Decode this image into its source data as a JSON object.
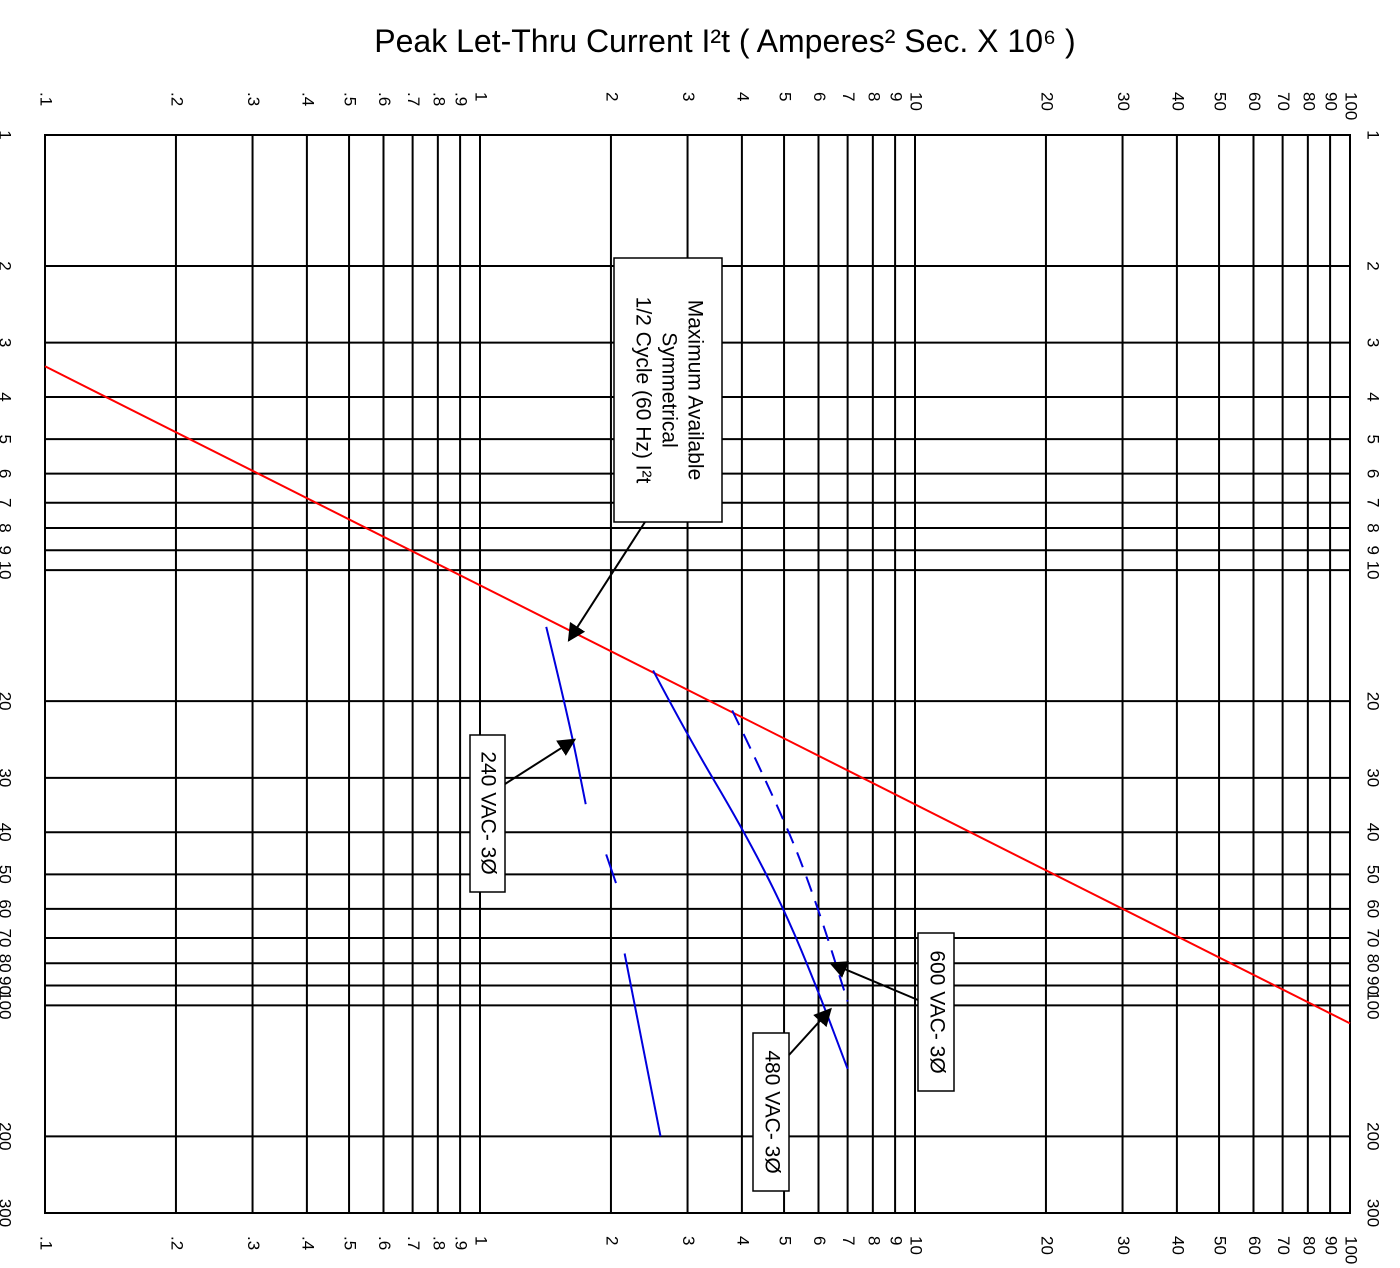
{
  "chart_data": {
    "type": "line",
    "title": "Peak Let-Thru Current I²t ( Amperes²  Sec. X 10⁶ )",
    "x_scale": "log",
    "y_scale": "log",
    "xlim": [
      0.1,
      100
    ],
    "ylim": [
      1,
      300
    ],
    "grid": true,
    "x_ticks": [
      {
        "v": 0.1,
        "label": ".1"
      },
      {
        "v": 0.2,
        "label": ".2"
      },
      {
        "v": 0.3,
        "label": ".3"
      },
      {
        "v": 0.4,
        "label": ".4"
      },
      {
        "v": 0.5,
        "label": ".5"
      },
      {
        "v": 0.6,
        "label": ".6"
      },
      {
        "v": 0.7,
        "label": ".7"
      },
      {
        "v": 0.8,
        "label": ".8"
      },
      {
        "v": 0.9,
        "label": ".9"
      },
      {
        "v": 1,
        "label": "1"
      },
      {
        "v": 2,
        "label": "2"
      },
      {
        "v": 3,
        "label": "3"
      },
      {
        "v": 4,
        "label": "4"
      },
      {
        "v": 5,
        "label": "5"
      },
      {
        "v": 6,
        "label": "6"
      },
      {
        "v": 7,
        "label": "7"
      },
      {
        "v": 8,
        "label": "8"
      },
      {
        "v": 9,
        "label": "9"
      },
      {
        "v": 10,
        "label": "10"
      },
      {
        "v": 20,
        "label": "20"
      },
      {
        "v": 30,
        "label": "30"
      },
      {
        "v": 40,
        "label": "40"
      },
      {
        "v": 50,
        "label": "50"
      },
      {
        "v": 60,
        "label": "60"
      },
      {
        "v": 70,
        "label": "70"
      },
      {
        "v": 80,
        "label": "80"
      },
      {
        "v": 90,
        "label": "90"
      },
      {
        "v": 100,
        "label": "100"
      }
    ],
    "y_ticks": [
      {
        "v": 1,
        "label": "1"
      },
      {
        "v": 2,
        "label": "2"
      },
      {
        "v": 3,
        "label": "3"
      },
      {
        "v": 4,
        "label": "4"
      },
      {
        "v": 5,
        "label": "5"
      },
      {
        "v": 6,
        "label": "6"
      },
      {
        "v": 7,
        "label": "7"
      },
      {
        "v": 8,
        "label": "8"
      },
      {
        "v": 9,
        "label": "9"
      },
      {
        "v": 10,
        "label": "10"
      },
      {
        "v": 20,
        "label": "20"
      },
      {
        "v": 30,
        "label": "30"
      },
      {
        "v": 40,
        "label": "40"
      },
      {
        "v": 50,
        "label": "50"
      },
      {
        "v": 60,
        "label": "60"
      },
      {
        "v": 70,
        "label": "70"
      },
      {
        "v": 80,
        "label": "80"
      },
      {
        "v": 90,
        "label": "90"
      },
      {
        "v": 100,
        "label": "100"
      },
      {
        "v": 200,
        "label": "200"
      },
      {
        "v": 300,
        "label": "300"
      }
    ],
    "series": [
      {
        "id": "max-available",
        "color": "#ff0000",
        "style": "solid",
        "points": [
          [
            0.1,
            3.4
          ],
          [
            100,
            110
          ]
        ]
      },
      {
        "id": "240vac",
        "color": "#0000dd",
        "style": "solid",
        "points": [
          [
            1.42,
            13.5
          ],
          [
            1.6,
            22
          ],
          [
            1.75,
            34.5
          ]
        ]
      },
      {
        "id": "240vac-b",
        "color": "#0000dd",
        "style": "dashes",
        "points": [
          [
            1.95,
            45
          ],
          [
            2.05,
            52
          ],
          [
            2.15,
            60
          ]
        ]
      },
      {
        "id": "240vac-c",
        "color": "#0000dd",
        "style": "solid",
        "points": [
          [
            2.15,
            76
          ],
          [
            2.6,
            200
          ]
        ]
      },
      {
        "id": "480vac",
        "color": "#0000dd",
        "style": "solid",
        "points": [
          [
            2.5,
            17
          ],
          [
            3,
            24
          ],
          [
            4,
            39
          ],
          [
            5,
            60
          ],
          [
            6,
            93
          ],
          [
            7,
            140
          ]
        ]
      },
      {
        "id": "600vac",
        "color": "#0000dd",
        "style": "dashed",
        "points": [
          [
            3.8,
            21
          ],
          [
            5,
            37
          ],
          [
            6,
            60
          ],
          [
            7,
            98
          ]
        ]
      }
    ],
    "annotations": [
      {
        "id": "max-note",
        "lines": [
          "Maximum Available",
          "Symmetrical",
          "1/2 Cycle (60 Hz)  I²t"
        ],
        "target": [
          1.6,
          14.5
        ]
      },
      {
        "id": "240-note",
        "lines": [
          "240 VAC- 3Ø"
        ],
        "target": [
          1.65,
          24.5
        ]
      },
      {
        "id": "600-note",
        "lines": [
          "600 VAC- 3Ø"
        ],
        "target": [
          6.4,
          80
        ]
      },
      {
        "id": "480-note",
        "lines": [
          "480 VAC- 3Ø"
        ],
        "target": [
          6.4,
          102
        ]
      }
    ]
  }
}
